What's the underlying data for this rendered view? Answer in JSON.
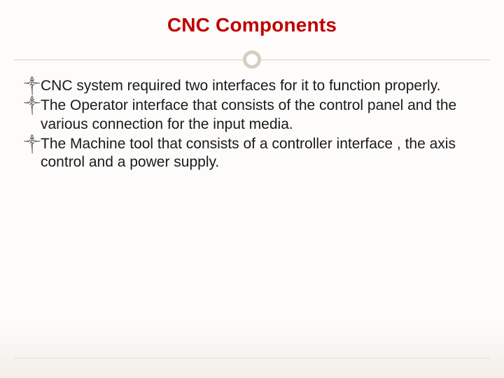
{
  "slide": {
    "title": "CNC Components",
    "title_color": "#c00000",
    "title_fontsize": 28,
    "divider": {
      "line_color": "#d5cfc0",
      "circle_border_color": "#d5cfc0",
      "circle_border_width": 5,
      "circle_bg": "#ffffff"
    },
    "body_text_color": "#1a1a1a",
    "body_fontsize": 21,
    "bullet_glyph": "༒",
    "bullet_color": "#3a3a3a",
    "bullets": [
      "CNC  system required two interfaces for it to function properly.",
      "The Operator interface that consists of the control panel and the various connection for the input media.",
      "The Machine tool that consists of a controller interface , the axis control and a power supply."
    ],
    "background_top": "#fdfcfb",
    "background_bottom": "#f2efe9",
    "bottom_line_color": "#d5cfc0"
  }
}
